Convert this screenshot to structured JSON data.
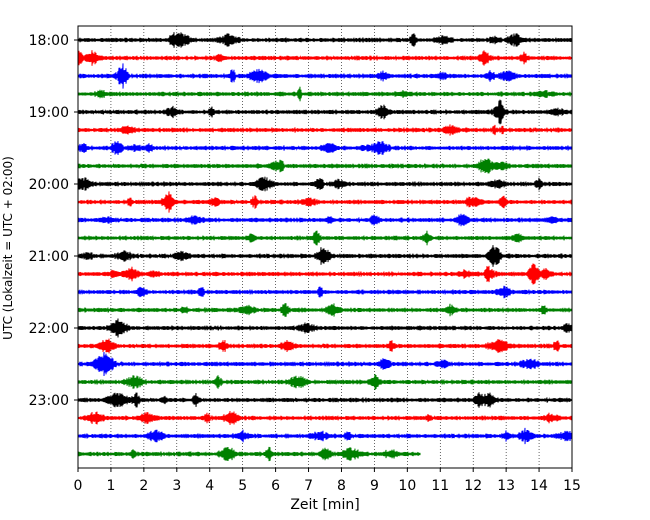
{
  "chart_data": {
    "type": "line",
    "xlabel": "Zeit  [min]",
    "ylabel": "UTC (Lokalzeit = UTC + 02:00)",
    "xlim": [
      0,
      15
    ],
    "x_ticks": [
      0,
      1,
      2,
      3,
      4,
      5,
      6,
      7,
      8,
      9,
      10,
      11,
      12,
      13,
      14,
      15
    ],
    "y_tick_labels": [
      "18:00",
      "19:00",
      "20:00",
      "21:00",
      "22:00",
      "23:00"
    ],
    "grid": "vertical-dotted",
    "rows_per_hour": 4,
    "row_minutes": 15,
    "series": [
      {
        "start": "18:00",
        "color": "#000000",
        "end_min": 15
      },
      {
        "start": "18:15",
        "color": "#ff0000",
        "end_min": 15
      },
      {
        "start": "18:30",
        "color": "#0000ff",
        "end_min": 15
      },
      {
        "start": "18:45",
        "color": "#008000",
        "end_min": 15
      },
      {
        "start": "19:00",
        "color": "#000000",
        "end_min": 15
      },
      {
        "start": "19:15",
        "color": "#ff0000",
        "end_min": 15
      },
      {
        "start": "19:30",
        "color": "#0000ff",
        "end_min": 15
      },
      {
        "start": "19:45",
        "color": "#008000",
        "end_min": 15
      },
      {
        "start": "20:00",
        "color": "#000000",
        "end_min": 15
      },
      {
        "start": "20:15",
        "color": "#ff0000",
        "end_min": 15
      },
      {
        "start": "20:30",
        "color": "#0000ff",
        "end_min": 15
      },
      {
        "start": "20:45",
        "color": "#008000",
        "end_min": 15
      },
      {
        "start": "21:00",
        "color": "#000000",
        "end_min": 15
      },
      {
        "start": "21:15",
        "color": "#ff0000",
        "end_min": 15
      },
      {
        "start": "21:30",
        "color": "#0000ff",
        "end_min": 15
      },
      {
        "start": "21:45",
        "color": "#008000",
        "end_min": 15
      },
      {
        "start": "22:00",
        "color": "#000000",
        "end_min": 15
      },
      {
        "start": "22:15",
        "color": "#ff0000",
        "end_min": 15
      },
      {
        "start": "22:30",
        "color": "#0000ff",
        "end_min": 15
      },
      {
        "start": "22:45",
        "color": "#008000",
        "end_min": 15
      },
      {
        "start": "23:00",
        "color": "#000000",
        "end_min": 15
      },
      {
        "start": "23:15",
        "color": "#ff0000",
        "end_min": 15
      },
      {
        "start": "23:30",
        "color": "#0000ff",
        "end_min": 15
      },
      {
        "start": "23:45",
        "color": "#008000",
        "end_min": 10.4
      }
    ]
  }
}
